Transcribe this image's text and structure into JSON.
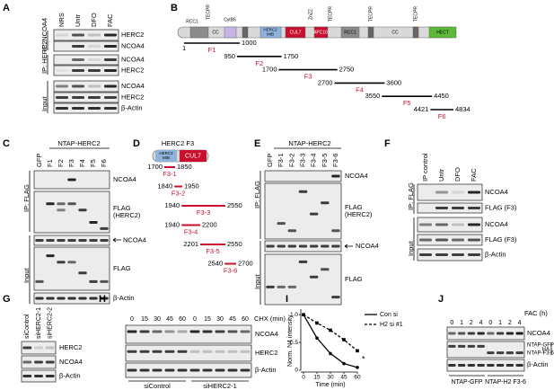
{
  "A": {
    "label": "A",
    "lanes": [
      "NRS",
      "Untr",
      "DFO",
      "FAC"
    ],
    "ip_ncoa4": "IP: NCOA4",
    "ip_herc2": "IP: HERC2",
    "input": "Input",
    "blots": [
      "HERC2",
      "NCOA4",
      "NCOA4",
      "HERC2",
      "NCOA4",
      "HERC2",
      "β-Actin"
    ]
  },
  "B": {
    "label": "B",
    "domains": [
      "RCC1",
      "TECPR",
      "CytB5",
      "CC",
      "CUL7",
      "ZnZZ",
      "APC10",
      "TECPR",
      "RCC1",
      "CC",
      "TECPR",
      "TECPR",
      "HECT"
    ],
    "mib": [
      "HERC2",
      "MIB"
    ],
    "fragments": [
      {
        "name": "F1",
        "start": 1,
        "end": 1000
      },
      {
        "name": "F2",
        "start": 950,
        "end": 1750
      },
      {
        "name": "F3",
        "start": 1700,
        "end": 2750
      },
      {
        "name": "F4",
        "start": 2700,
        "end": 3600
      },
      {
        "name": "F5",
        "start": 3550,
        "end": 4450
      },
      {
        "name": "F6",
        "start": 4421,
        "end": 4834
      }
    ]
  },
  "C": {
    "label": "C",
    "construct": "NTAP-HERC2",
    "lanes": [
      "GFP",
      "F1",
      "F2",
      "F3",
      "F4",
      "F5",
      "F6"
    ],
    "ip": "IP: FLAG",
    "input": "Input",
    "blots": [
      "NCOA4",
      [
        "FLAG",
        "(HERC2)"
      ],
      "NCOA4",
      "FLAG",
      "β-Actin"
    ]
  },
  "D": {
    "label": "D",
    "title": "HERC2 F3",
    "mib": [
      "HERC2",
      "MIB"
    ],
    "cul7": "CUL7",
    "fragments": [
      {
        "name": "F3-1",
        "start": 1700,
        "end": 1850
      },
      {
        "name": "F3-2",
        "start": 1840,
        "end": 1950
      },
      {
        "name": "F3-3",
        "start": 1940,
        "end": 2550
      },
      {
        "name": "F3-4",
        "start": 1940,
        "end": 2200
      },
      {
        "name": "F3-5",
        "start": 2201,
        "end": 2550
      },
      {
        "name": "F3-6",
        "start": 2540,
        "end": 2700
      }
    ]
  },
  "E": {
    "label": "E",
    "construct": "NTAP-HERC2",
    "lanes": [
      "GFP",
      "F3-1",
      "F3-2",
      "F3-3",
      "F3-4",
      "F3-5",
      "F3-6"
    ],
    "ip": "IP: FLAG",
    "input": "Input",
    "blots": [
      "NCOA4",
      [
        "FLAG",
        "(HERC2)"
      ],
      "NCOA4",
      "FLAG"
    ]
  },
  "F": {
    "label": "F",
    "lanes": [
      "IP control",
      "Untr",
      "DFO",
      "FAC"
    ],
    "ip": "IP: FLAG",
    "input": "Input",
    "blots": [
      "NCOA4",
      "FLAG (F3)",
      "NCOA4",
      "FLAG (F3)",
      "β-Actin"
    ]
  },
  "G": {
    "label": "G",
    "lanes": [
      "siControl",
      "siHERC2-1",
      "siHERC2-2"
    ],
    "blots": [
      "HERC2",
      "NCOA4",
      "β-Actin"
    ]
  },
  "H": {
    "label": "H",
    "treatment": "CHX (min)",
    "lanes": [
      0,
      15,
      30,
      45,
      60,
      0,
      15,
      30,
      45,
      60
    ],
    "blots": [
      "NCOA4",
      "HERC2",
      "β-Actin"
    ],
    "groups": [
      "siControl",
      "siHERC2-1"
    ]
  },
  "J": {
    "label": "J",
    "treatment": "FAC (h)",
    "lanes": [
      0,
      1,
      2,
      4,
      0,
      1,
      2,
      4
    ],
    "blots": [
      "NCOA4",
      "NTAP-GFP",
      "NTAP-F3-6",
      "β-Actin"
    ],
    "tag": "HA",
    "groups": [
      "NTAP-GFP",
      "NTAP-H2 F3-6"
    ]
  },
  "chart_data": {
    "type": "line",
    "label": "I",
    "x_label": "Time (min)",
    "y_label": "Norm. N4 intensity",
    "annotation": "*",
    "x": [
      0,
      15,
      30,
      45,
      60
    ],
    "xlim": [
      0,
      60
    ],
    "xticks": [
      0,
      15,
      30,
      45,
      60
    ],
    "ylim": [
      0,
      1.1
    ],
    "yticks": [
      0,
      0.5,
      {
        "value": 1,
        "label": "1.0"
      }
    ],
    "series": [
      {
        "name": "Con si",
        "color": "#000000",
        "dashed": false,
        "values": [
          1.0,
          0.58,
          0.3,
          0.12,
          0.05
        ]
      },
      {
        "name": "H2 si #1",
        "color": "#000000",
        "dashed": true,
        "values": [
          1.0,
          0.85,
          0.72,
          0.55,
          0.35
        ]
      }
    ]
  }
}
